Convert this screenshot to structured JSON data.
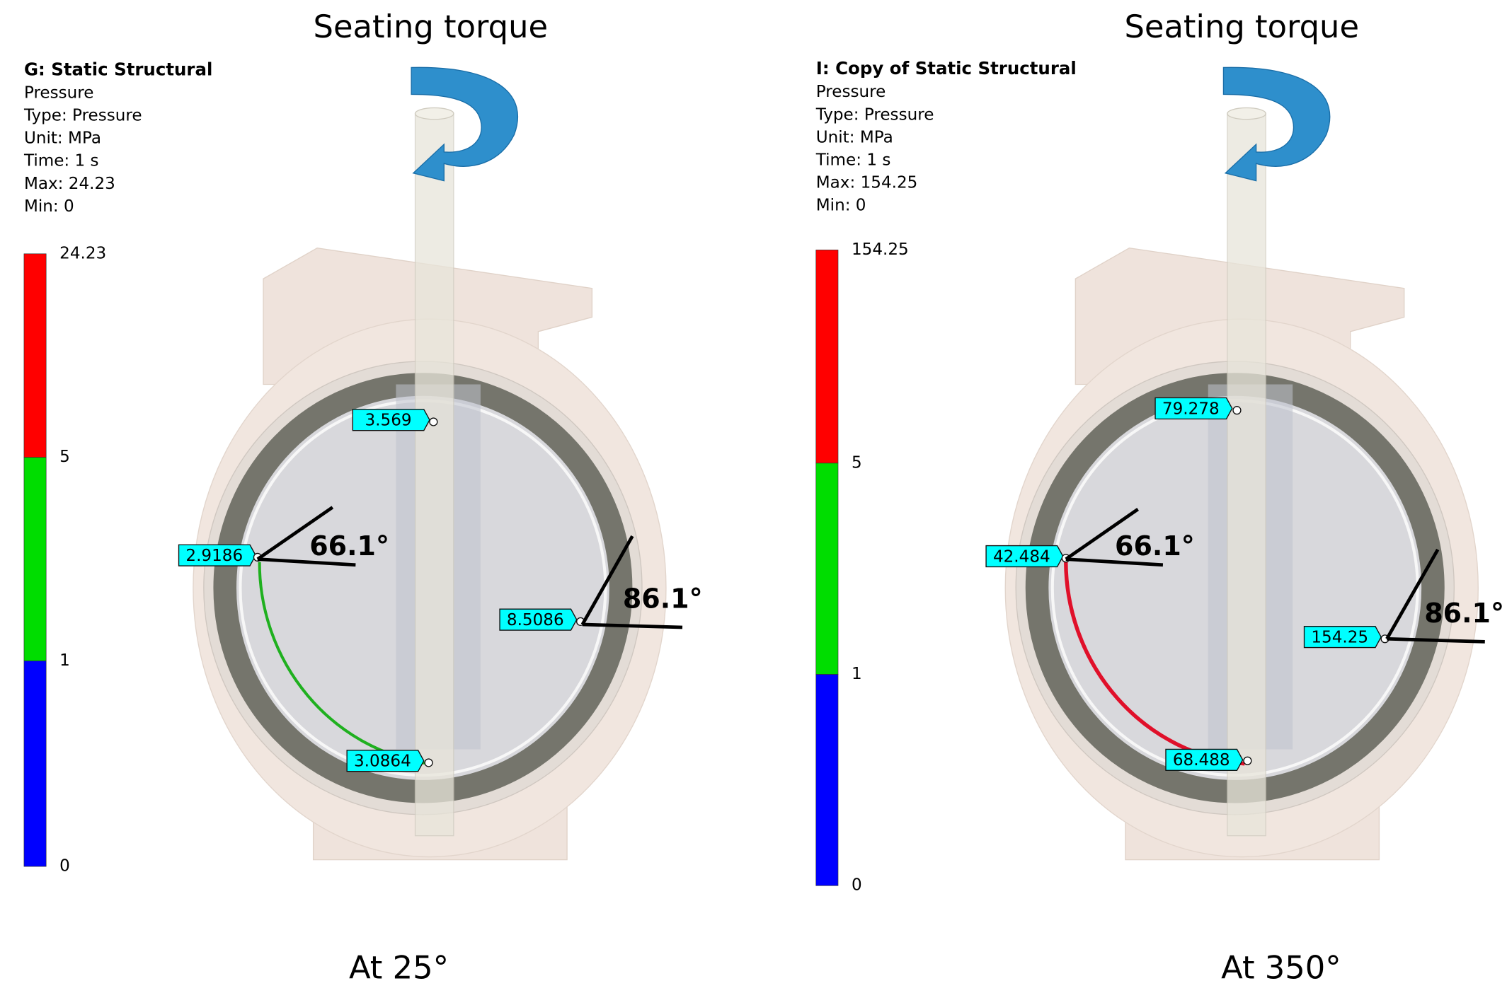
{
  "panels": [
    {
      "title": "Seating torque",
      "info": {
        "heading": "G: Static Structural",
        "lines": [
          "Pressure",
          "Type: Pressure",
          "Unit: MPa",
          "Time: 1 s",
          "Max: 24.23",
          "Min: 0"
        ]
      },
      "legend_ticks": [
        "24.23",
        "5",
        "1",
        "0"
      ],
      "probes": [
        "3.569",
        "2.9186",
        "8.5086",
        "3.0864"
      ],
      "angles": [
        "66.1°",
        "86.1°"
      ],
      "caption": "At 25°"
    },
    {
      "title": "Seating torque",
      "info": {
        "heading": "I: Copy of Static Structural",
        "lines": [
          "Pressure",
          "Type: Pressure",
          "Unit: MPa",
          "Time: 1 s",
          "Max: 154.25",
          "Min: 0"
        ]
      },
      "legend_ticks": [
        "154.25",
        "5",
        "1",
        "0"
      ],
      "probes": [
        "79.278",
        "42.484",
        "154.25",
        "68.488"
      ],
      "angles": [
        "66.1°",
        "86.1°"
      ],
      "caption": "At 350°"
    }
  ]
}
